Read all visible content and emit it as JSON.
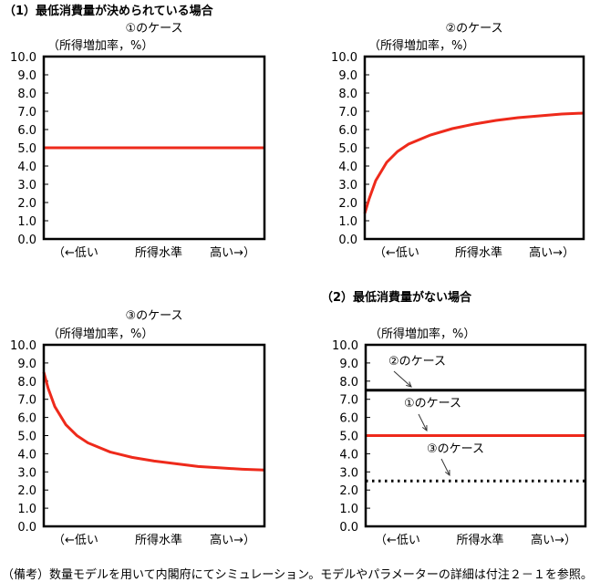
{
  "section1_title": "（1）最低消費量が決められている場合",
  "section2_title": "（2）最低消費量がない場合",
  "footnote": "（備考）数量モデルを用いて内閣府にてシミュレーション。モデルやパラメーターの詳細は付注２－１を参照。",
  "colors": {
    "red": "#ee2a1b",
    "black": "#000000"
  },
  "chart_data": [
    {
      "type": "line",
      "title": "①のケース",
      "ylabel": "（所得増加率，%）",
      "xlabels": [
        "（←低い",
        "所得水準",
        "高い→）"
      ],
      "yticks": [
        "10.0",
        "9.0",
        "8.0",
        "7.0",
        "6.0",
        "5.0",
        "4.0",
        "3.0",
        "2.0",
        "1.0",
        "0.0"
      ],
      "ylim": [
        0,
        10
      ],
      "series": [
        {
          "color": "#ee2a1b",
          "style": "solid",
          "x": [
            0,
            1
          ],
          "y": [
            5.0,
            5.0
          ]
        }
      ]
    },
    {
      "type": "line",
      "title": "②のケース",
      "ylabel": "（所得増加率，%）",
      "xlabels": [
        "（←低い",
        "所得水準",
        "高い→）"
      ],
      "yticks": [
        "10.0",
        "9.0",
        "8.0",
        "7.0",
        "6.0",
        "5.0",
        "4.0",
        "3.0",
        "2.0",
        "1.0",
        "0.0"
      ],
      "ylim": [
        0,
        10
      ],
      "series": [
        {
          "color": "#ee2a1b",
          "style": "solid",
          "x": [
            0,
            0.02,
            0.05,
            0.1,
            0.15,
            0.2,
            0.3,
            0.4,
            0.5,
            0.6,
            0.7,
            0.8,
            0.9,
            1.0
          ],
          "y": [
            1.4,
            2.2,
            3.2,
            4.2,
            4.8,
            5.2,
            5.7,
            6.05,
            6.3,
            6.5,
            6.65,
            6.75,
            6.85,
            6.9
          ]
        }
      ]
    },
    {
      "type": "line",
      "title": "③のケース",
      "ylabel": "（所得増加率，%）",
      "xlabels": [
        "（←低い",
        "所得水準",
        "高い→）"
      ],
      "yticks": [
        "10.0",
        "9.0",
        "8.0",
        "7.0",
        "6.0",
        "5.0",
        "4.0",
        "3.0",
        "2.0",
        "1.0",
        "0.0"
      ],
      "ylim": [
        0,
        10
      ],
      "series": [
        {
          "color": "#ee2a1b",
          "style": "solid",
          "x": [
            0,
            0.02,
            0.05,
            0.1,
            0.15,
            0.2,
            0.3,
            0.4,
            0.5,
            0.6,
            0.7,
            0.8,
            0.9,
            1.0
          ],
          "y": [
            8.5,
            7.6,
            6.6,
            5.6,
            5.0,
            4.6,
            4.1,
            3.8,
            3.6,
            3.45,
            3.3,
            3.22,
            3.15,
            3.1
          ]
        }
      ]
    },
    {
      "type": "line",
      "title": "",
      "ylabel": "（所得増加率，%）",
      "xlabels": [
        "（←低い",
        "所得水準",
        "高い→）"
      ],
      "yticks": [
        "10.0",
        "9.0",
        "8.0",
        "7.0",
        "6.0",
        "5.0",
        "4.0",
        "3.0",
        "2.0",
        "1.0",
        "0.0"
      ],
      "ylim": [
        0,
        10
      ],
      "series": [
        {
          "name": "②のケース",
          "color": "#000000",
          "style": "solid",
          "x": [
            0,
            1
          ],
          "y": [
            7.5,
            7.5
          ]
        },
        {
          "name": "①のケース",
          "color": "#ee2a1b",
          "style": "solid",
          "x": [
            0,
            1
          ],
          "y": [
            5.0,
            5.0
          ]
        },
        {
          "name": "③のケース",
          "color": "#000000",
          "style": "dotted",
          "x": [
            0,
            1
          ],
          "y": [
            2.5,
            2.5
          ]
        }
      ]
    }
  ]
}
